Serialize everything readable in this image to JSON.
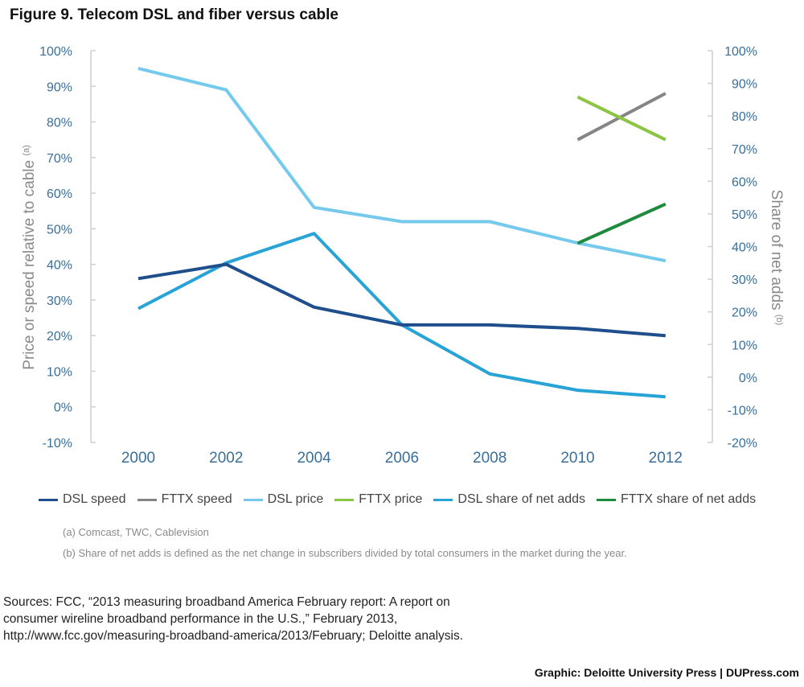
{
  "title": "Figure 9. Telecom DSL and fiber versus cable",
  "chart_data": {
    "type": "line",
    "categories": [
      "2000",
      "2002",
      "2004",
      "2006",
      "2008",
      "2010",
      "2012"
    ],
    "left_axis": {
      "label": "Price or speed relative to cable",
      "label_sup": "(a)",
      "ticks": [
        "-10%",
        "0%",
        "10%",
        "20%",
        "30%",
        "40%",
        "50%",
        "60%",
        "70%",
        "80%",
        "90%",
        "100%"
      ],
      "range": [
        -10,
        100
      ]
    },
    "right_axis": {
      "label": "Share of net adds",
      "label_sup": "(b)",
      "ticks": [
        "-20%",
        "-10%",
        "0%",
        "10%",
        "20%",
        "30%",
        "40%",
        "50%",
        "60%",
        "70%",
        "80%",
        "90%",
        "100%"
      ],
      "range": [
        -20,
        100
      ]
    },
    "series": [
      {
        "name": "DSL speed",
        "axis": "left",
        "color": "#1f4e8c",
        "values": [
          36,
          40,
          28,
          23,
          23,
          22,
          20
        ]
      },
      {
        "name": "FTTX speed",
        "axis": "left",
        "color": "#858585",
        "values": [
          null,
          null,
          null,
          null,
          null,
          75,
          88
        ]
      },
      {
        "name": "DSL price",
        "axis": "left",
        "color": "#74c9ec",
        "values": [
          95,
          89,
          56,
          52,
          52,
          46,
          41
        ]
      },
      {
        "name": "FTTX price",
        "axis": "left",
        "color": "#8cc443",
        "values": [
          null,
          null,
          null,
          null,
          null,
          87,
          75
        ]
      },
      {
        "name": "DSL share of net adds",
        "axis": "right",
        "color": "#27a3d6",
        "values": [
          21,
          35,
          44,
          16,
          1,
          -4,
          -6
        ]
      },
      {
        "name": "FTTX share of net adds",
        "axis": "right",
        "color": "#1f8a3c",
        "values": [
          null,
          null,
          null,
          null,
          null,
          41,
          53
        ]
      }
    ],
    "grid": false,
    "legend_position": "bottom"
  },
  "notes": [
    "(a) Comcast, TWC, Cablevision",
    "(b) Share of net adds is defined as the net change in subscribers divided by total consumers in the market during the year."
  ],
  "sources": "Sources: FCC, “2013 measuring broadband America February report: A report on consumer wireline broadband performance in the U.S.,” February 2013, http://www.fcc.gov/measuring-broadband-america/2013/February; Deloitte analysis.",
  "credit": "Graphic: Deloitte University Press  |  DUPress.com"
}
